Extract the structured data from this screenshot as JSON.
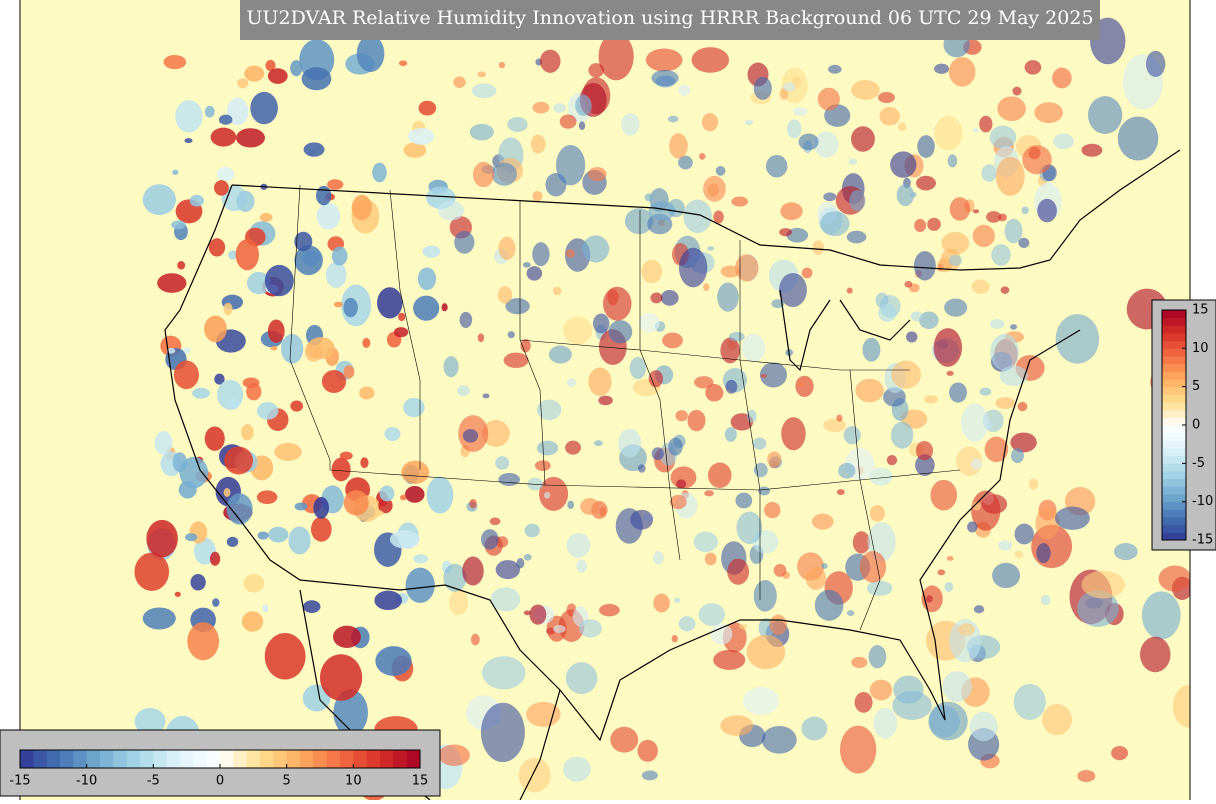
{
  "title": "UU2DVAR Relative Humidity Innovation using HRRR Background 06 UTC 29 May 2025",
  "colormap": [
    "#313695",
    "#4575b4",
    "#74add1",
    "#abd9e9",
    "#e0f3f8",
    "#ffffff",
    "#fee090",
    "#fdae61",
    "#f46d43",
    "#d73027",
    "#a50026"
  ],
  "colorbars": [
    {
      "orientation": "horizontal",
      "lim": [
        -15,
        15
      ],
      "ticks": [
        -15,
        -10,
        -5,
        0,
        5,
        10,
        15
      ]
    },
    {
      "orientation": "vertical",
      "lim": [
        -15,
        15
      ],
      "ticks": [
        15,
        10,
        5,
        0,
        -5,
        -10,
        -15
      ]
    }
  ]
}
